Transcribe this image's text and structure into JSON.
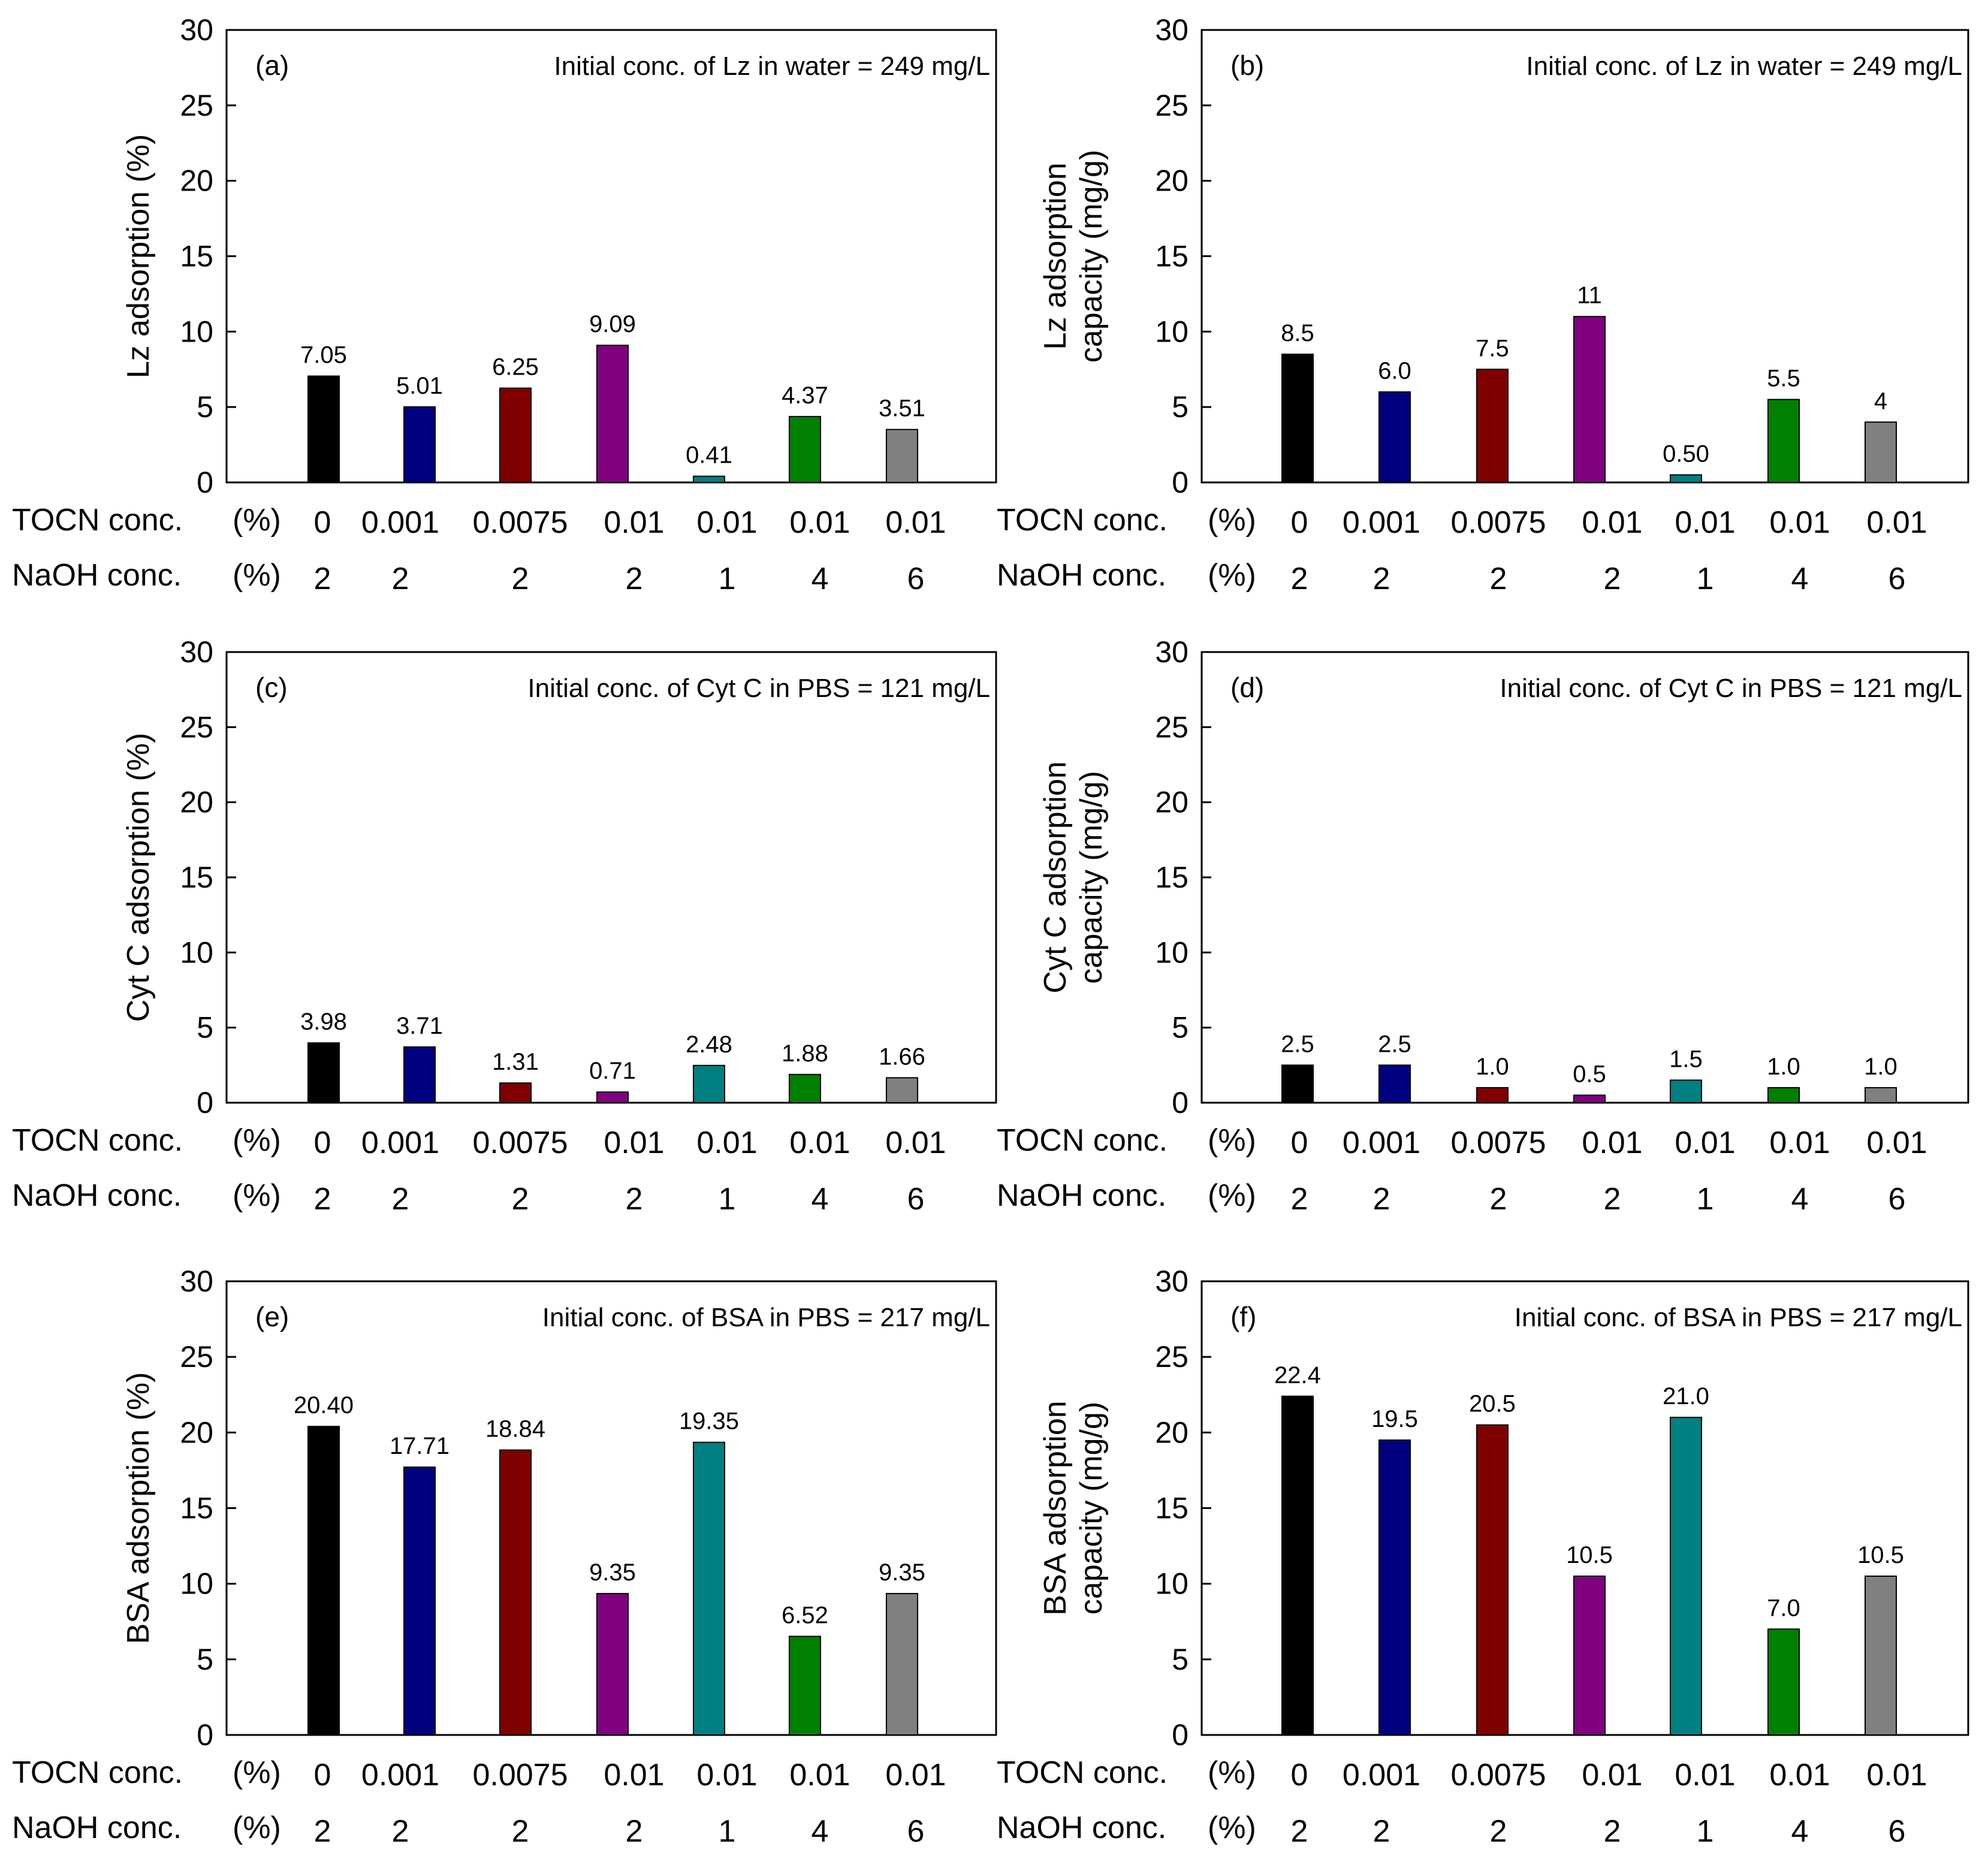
{
  "rows": {
    "tocn_label": "TOCN conc.",
    "naoh_label": "NaOH conc.",
    "unit": "(%)",
    "tocn_values": [
      "0",
      "0.001",
      "0.0075",
      "0.01",
      "0.01",
      "0.01",
      "0.01"
    ],
    "naoh_values": [
      "2",
      "2",
      "2",
      "2",
      "1",
      "4",
      "6"
    ]
  },
  "colors": [
    "#000000",
    "#000080",
    "#800000",
    "#800080",
    "#008080",
    "#008000",
    "#808080"
  ],
  "chart_data": [
    {
      "type": "bar",
      "panel": "(a)",
      "annotation": "Initial conc. of Lz in water = 249 mg/L",
      "ylabel": [
        "Lz adsorption (%)"
      ],
      "ylim": [
        0,
        30
      ],
      "yticks": [
        0,
        5,
        10,
        15,
        20,
        25,
        30
      ],
      "values": [
        7.05,
        5.01,
        6.25,
        9.09,
        0.41,
        4.37,
        3.51
      ],
      "data_labels": [
        "7.05",
        "5.01",
        "6.25",
        "9.09",
        "0.41",
        "4.37",
        "3.51"
      ]
    },
    {
      "type": "bar",
      "panel": "(b)",
      "annotation": "Initial conc. of Lz in water = 249 mg/L",
      "ylabel": [
        "Lz adsorption",
        "capacity (mg/g)"
      ],
      "ylim": [
        0,
        30
      ],
      "yticks": [
        0,
        5,
        10,
        15,
        20,
        25,
        30
      ],
      "values": [
        8.5,
        6.0,
        7.5,
        11,
        0.5,
        5.5,
        4
      ],
      "data_labels": [
        "8.5",
        "6.0",
        "7.5",
        "11",
        "0.50",
        "5.5",
        "4"
      ]
    },
    {
      "type": "bar",
      "panel": "(c)",
      "annotation": "Initial conc. of Cyt C in PBS = 121 mg/L",
      "ylabel": [
        "Cyt C adsorption (%)"
      ],
      "ylim": [
        0,
        30
      ],
      "yticks": [
        0,
        5,
        10,
        15,
        20,
        25,
        30
      ],
      "values": [
        3.98,
        3.71,
        1.31,
        0.71,
        2.48,
        1.88,
        1.66
      ],
      "data_labels": [
        "3.98",
        "3.71",
        "1.31",
        "0.71",
        "2.48",
        "1.88",
        "1.66"
      ]
    },
    {
      "type": "bar",
      "panel": "(d)",
      "annotation": "Initial conc. of Cyt C in PBS = 121 mg/L",
      "ylabel": [
        "Cyt C adsorption",
        "capacity (mg/g)"
      ],
      "ylim": [
        0,
        30
      ],
      "yticks": [
        0,
        5,
        10,
        15,
        20,
        25,
        30
      ],
      "values": [
        2.5,
        2.5,
        1.0,
        0.5,
        1.5,
        1.0,
        1.0
      ],
      "data_labels": [
        "2.5",
        "2.5",
        "1.0",
        "0.5",
        "1.5",
        "1.0",
        "1.0"
      ]
    },
    {
      "type": "bar",
      "panel": "(e)",
      "annotation": "Initial conc. of BSA in PBS = 217 mg/L",
      "ylabel": [
        "BSA adsorption (%)"
      ],
      "ylim": [
        0,
        30
      ],
      "yticks": [
        0,
        5,
        10,
        15,
        20,
        25,
        30
      ],
      "values": [
        20.4,
        17.71,
        18.84,
        9.35,
        19.35,
        6.52,
        9.35
      ],
      "data_labels": [
        "20.40",
        "17.71",
        "18.84",
        "9.35",
        "19.35",
        "6.52",
        "9.35"
      ]
    },
    {
      "type": "bar",
      "panel": "(f)",
      "annotation": "Initial conc. of BSA in PBS = 217 mg/L",
      "ylabel": [
        "BSA adsorption",
        "capacity (mg/g)"
      ],
      "ylim": [
        0,
        30
      ],
      "yticks": [
        0,
        5,
        10,
        15,
        20,
        25,
        30
      ],
      "values": [
        22.4,
        19.5,
        20.5,
        10.5,
        21.0,
        7.0,
        10.5
      ],
      "data_labels": [
        "22.4",
        "19.5",
        "20.5",
        "10.5",
        "21.0",
        "7.0",
        "10.5"
      ]
    }
  ]
}
